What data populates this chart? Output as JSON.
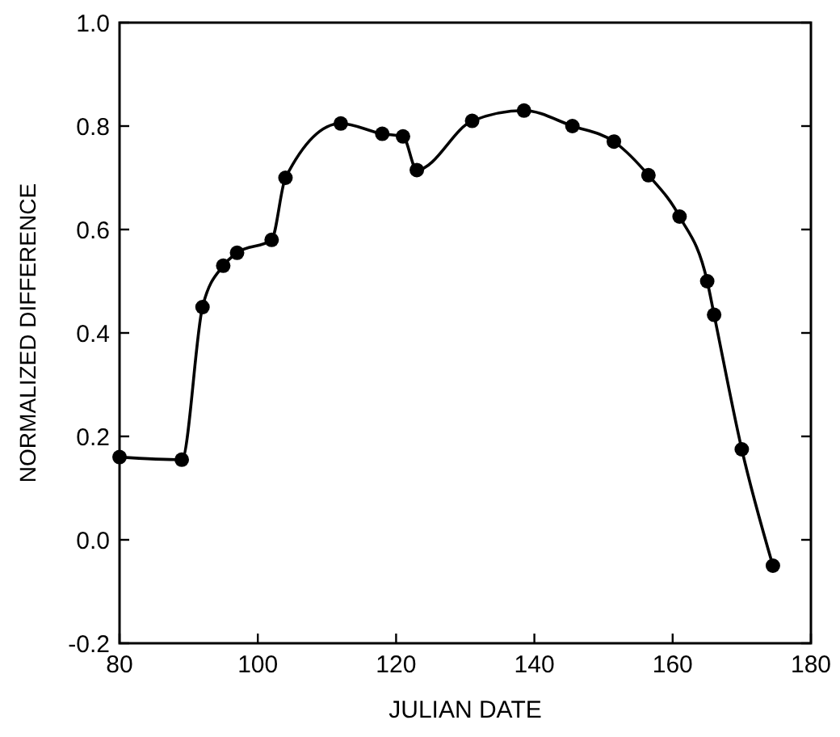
{
  "chart_data": {
    "type": "line",
    "xlabel": "JULIAN DATE",
    "ylabel": "NORMALIZED DIFFERENCE",
    "x": [
      80,
      89,
      92,
      95,
      97,
      102,
      104,
      112,
      118,
      121,
      123,
      131,
      138.5,
      145.5,
      151.5,
      156.5,
      161,
      165,
      166,
      170,
      174.5
    ],
    "series": [
      {
        "color": "#000000",
        "values": [
          0.16,
          0.155,
          0.45,
          0.53,
          0.555,
          0.58,
          0.7,
          0.805,
          0.785,
          0.78,
          0.715,
          0.81,
          0.83,
          0.8,
          0.77,
          0.705,
          0.625,
          0.5,
          0.435,
          0.175,
          -0.05
        ]
      }
    ],
    "xlim": [
      80,
      180
    ],
    "xticks": [
      80,
      100,
      120,
      140,
      160,
      180
    ],
    "ylim": [
      -0.2,
      1.0
    ],
    "yticks": [
      {
        "value": -0.2,
        "label": "-0.2"
      },
      {
        "value": 0,
        "label": "0.0"
      },
      {
        "value": 0.2,
        "label": "0.2"
      },
      {
        "value": 0.4,
        "label": "0.4"
      },
      {
        "value": 0.6,
        "label": "0.6"
      },
      {
        "value": 0.8,
        "label": "0.8"
      },
      {
        "value": 1.0,
        "label": "1.0"
      }
    ],
    "marker": "circle",
    "line_style": "solid",
    "grid": false
  }
}
